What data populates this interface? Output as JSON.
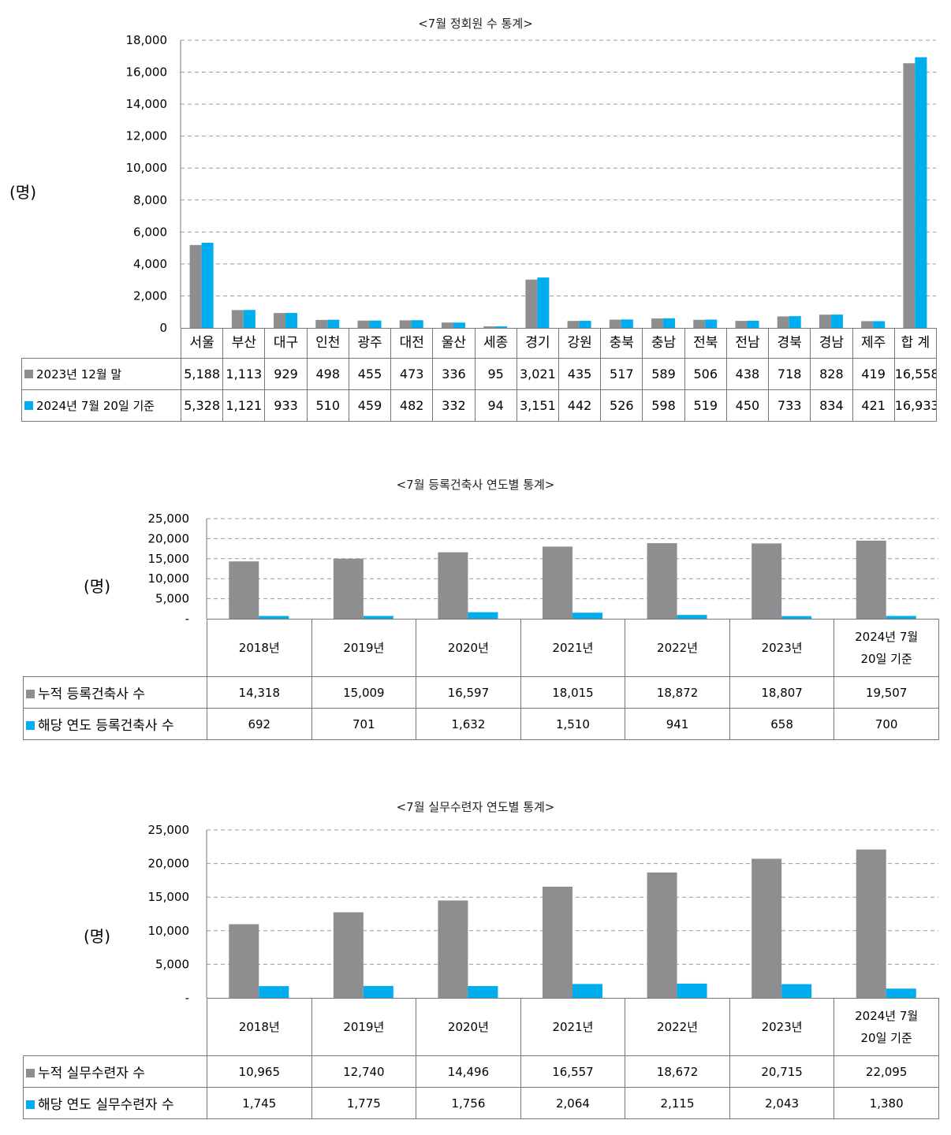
{
  "colors": {
    "series1": "#8e8e90",
    "series2": "#00aeef",
    "grid": "#9a9a9a"
  },
  "chart_data": [
    {
      "type": "bar",
      "title": "<7월 정회원 수 통계>",
      "ylabel": "(명)",
      "ylim": [
        0,
        18000
      ],
      "yticks": [
        "0",
        "2,000",
        "4,000",
        "6,000",
        "8,000",
        "10,000",
        "12,000",
        "14,000",
        "16,000",
        "18,000"
      ],
      "categories": [
        "서울",
        "부산",
        "대구",
        "인천",
        "광주",
        "대전",
        "울산",
        "세종",
        "경기",
        "강원",
        "충북",
        "충남",
        "전북",
        "전남",
        "경북",
        "경남",
        "제주",
        "합 계"
      ],
      "series": [
        {
          "name": "2023년 12월 말",
          "values": [
            5188,
            1113,
            929,
            498,
            455,
            473,
            336,
            95,
            3021,
            435,
            517,
            589,
            506,
            438,
            718,
            828,
            419,
            16558
          ],
          "labels": [
            "5,188",
            "1,113",
            "929",
            "498",
            "455",
            "473",
            "336",
            "95",
            "3,021",
            "435",
            "517",
            "589",
            "506",
            "438",
            "718",
            "828",
            "419",
            "16,558"
          ]
        },
        {
          "name": "2024년 7월 20일 기준",
          "values": [
            5328,
            1121,
            933,
            510,
            459,
            482,
            332,
            94,
            3151,
            442,
            526,
            598,
            519,
            450,
            733,
            834,
            421,
            16933
          ],
          "labels": [
            "5,328",
            "1,121",
            "933",
            "510",
            "459",
            "482",
            "332",
            "94",
            "3,151",
            "442",
            "526",
            "598",
            "519",
            "450",
            "733",
            "834",
            "421",
            "16,933"
          ]
        }
      ],
      "grid": true,
      "legend": "data-table"
    },
    {
      "type": "bar",
      "title": "<7월 등록건축사 연도별 통계>",
      "ylabel": "(명)",
      "ylim": [
        0,
        25000
      ],
      "yticks": [
        "-",
        "5,000",
        "10,000",
        "15,000",
        "20,000",
        "25,000"
      ],
      "categories": [
        "2018년",
        "2019년",
        "2020년",
        "2021년",
        "2022년",
        "2023년",
        "2024년 7월\n20일 기준"
      ],
      "series": [
        {
          "name": "누적 등록건축사 수",
          "values": [
            14318,
            15009,
            16597,
            18015,
            18872,
            18807,
            19507
          ],
          "labels": [
            "14,318",
            "15,009",
            "16,597",
            "18,015",
            "18,872",
            "18,807",
            "19,507"
          ]
        },
        {
          "name": "해당 연도 등록건축사 수",
          "values": [
            692,
            701,
            1632,
            1510,
            941,
            658,
            700
          ],
          "labels": [
            "692",
            "701",
            "1,632",
            "1,510",
            "941",
            "658",
            "700"
          ]
        }
      ],
      "grid": true,
      "legend": "data-table"
    },
    {
      "type": "bar",
      "title": "<7월 실무수련자 연도별 통계>",
      "ylabel": "(명)",
      "ylim": [
        0,
        25000
      ],
      "yticks": [
        "-",
        "5,000",
        "10,000",
        "15,000",
        "20,000",
        "25,000"
      ],
      "categories": [
        "2018년",
        "2019년",
        "2020년",
        "2021년",
        "2022년",
        "2023년",
        "2024년 7월\n20일 기준"
      ],
      "series": [
        {
          "name": "누적 실무수련자 수",
          "values": [
            10965,
            12740,
            14496,
            16557,
            18672,
            20715,
            22095
          ],
          "labels": [
            "10,965",
            "12,740",
            "14,496",
            "16,557",
            "18,672",
            "20,715",
            "22,095"
          ]
        },
        {
          "name": "해당 연도 실무수련자 수",
          "values": [
            1745,
            1775,
            1756,
            2064,
            2115,
            2043,
            1380
          ],
          "labels": [
            "1,745",
            "1,775",
            "1,756",
            "2,064",
            "2,115",
            "2,043",
            "1,380"
          ]
        }
      ],
      "grid": true,
      "legend": "data-table"
    }
  ]
}
